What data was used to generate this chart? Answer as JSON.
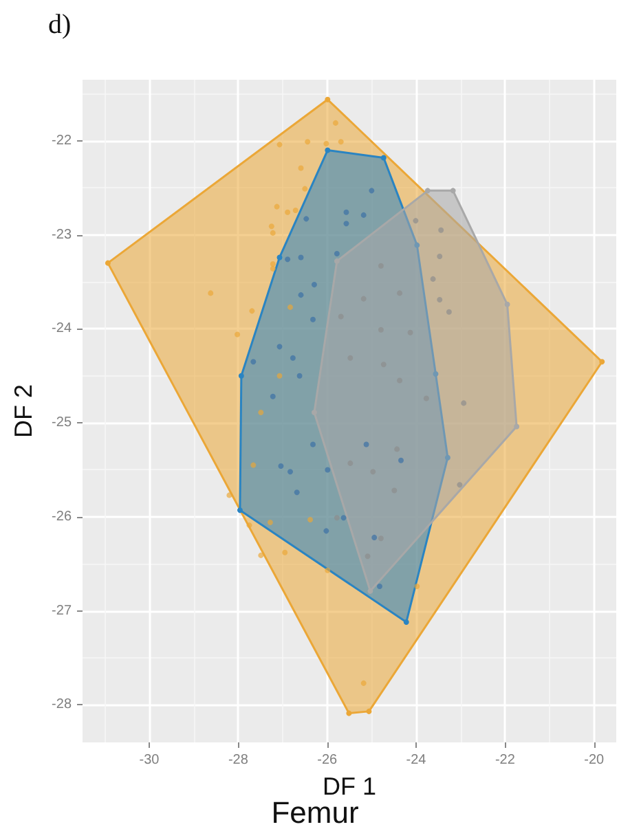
{
  "chart_data": {
    "type": "scatter",
    "title": "Femur",
    "xlabel": "DF 1",
    "ylabel": "DF 2",
    "annotations": [
      "d)"
    ],
    "xlim": [
      -31.5,
      -19.5
    ],
    "xticks": [
      -30,
      -28,
      -26,
      -24,
      -22,
      -20
    ],
    "ylim": [
      -28.4,
      -21.35
    ],
    "yticks": [
      -22,
      -23,
      -24,
      -25,
      -26,
      -27,
      -28
    ],
    "grid": true,
    "marker": "circle",
    "series": [
      {
        "type": "area",
        "color": "#eba737",
        "x": [
          -25.99,
          -30.93,
          -25.51,
          -25.06,
          -19.82
        ],
        "values": [
          -21.56,
          -23.3,
          -28.09,
          -28.07,
          -24.35
        ]
      },
      {
        "type": "area",
        "color": "#2a84c2",
        "x": [
          -25.99,
          -24.73,
          -23.98,
          -23.56,
          -23.29,
          -24.22,
          -27.96,
          -27.93,
          -27.07
        ],
        "values": [
          -22.1,
          -22.18,
          -23.11,
          -24.48,
          -25.37,
          -27.12,
          -25.93,
          -24.5,
          -23.24
        ]
      },
      {
        "type": "area",
        "color": "#a8a8a8",
        "x": [
          -23.74,
          -23.17,
          -21.95,
          -21.74,
          -25.03,
          -26.29,
          -25.78
        ],
        "values": [
          -22.53,
          -22.53,
          -23.74,
          -25.04,
          -26.79,
          -24.89,
          -23.28
        ]
      },
      {
        "color": "#eba737",
        "x": [
          -25.81,
          -27.07,
          -26.44,
          -26.02,
          -25.69,
          -26.59,
          -26.5,
          -27.13,
          -26.89,
          -26.71,
          -27.25,
          -27.22,
          -27.22,
          -27.22,
          -28.62,
          -27.69,
          -28.02,
          -28.2,
          -27.75,
          -27.49,
          -26.95,
          -25.99,
          -25.18,
          -23.98,
          -26.83,
          -27.07,
          -27.49,
          -27.66,
          -27.28,
          -26.38
        ],
        "values": [
          -21.81,
          -22.04,
          -22.01,
          -22.03,
          -22.01,
          -22.29,
          -22.51,
          -22.7,
          -22.76,
          -22.74,
          -22.91,
          -22.98,
          -23.31,
          -23.36,
          -23.62,
          -23.81,
          -24.06,
          -25.77,
          -26.09,
          -26.41,
          -26.38,
          -26.57,
          -27.77,
          -26.74,
          -23.77,
          -24.5,
          -24.89,
          -25.45,
          -26.06,
          -26.03
        ]
      },
      {
        "color": "#3a6ea5",
        "x": [
          -25.0,
          -25.57,
          -25.18,
          -25.57,
          -26.47,
          -26.89,
          -26.59,
          -25.78,
          -26.29,
          -26.59,
          -26.32,
          -27.07,
          -27.66,
          -26.77,
          -26.62,
          -27.22,
          -26.32,
          -27.04,
          -26.83,
          -26.68,
          -25.99,
          -26.02,
          -25.63,
          -24.82,
          -24.94,
          -24.34,
          -25.12
        ],
        "values": [
          -22.53,
          -22.76,
          -22.79,
          -22.88,
          -22.83,
          -23.26,
          -23.24,
          -23.2,
          -23.53,
          -23.64,
          -23.9,
          -24.19,
          -24.35,
          -24.31,
          -24.5,
          -24.72,
          -25.23,
          -25.46,
          -25.52,
          -25.74,
          -25.5,
          -26.15,
          -26.01,
          -26.74,
          -26.22,
          -25.4,
          -25.23
        ]
      },
      {
        "color": "#8c8c8c",
        "x": [
          -24.01,
          -23.44,
          -23.47,
          -23.62,
          -23.47,
          -23.26,
          -22.93,
          -24.79,
          -24.37,
          -25.18,
          -24.79,
          -24.13,
          -25.69,
          -25.48,
          -24.73,
          -24.37,
          -23.77,
          -24.43,
          -24.97,
          -24.49,
          -25.48,
          -25.78,
          -24.79,
          -25.09,
          -23.02
        ],
        "values": [
          -22.85,
          -22.95,
          -23.23,
          -23.47,
          -23.69,
          -23.82,
          -24.79,
          -23.33,
          -23.62,
          -23.68,
          -24.01,
          -24.04,
          -23.87,
          -24.31,
          -24.38,
          -24.55,
          -24.74,
          -25.28,
          -25.52,
          -25.72,
          -25.43,
          -26.01,
          -26.23,
          -26.42,
          -25.66
        ]
      }
    ]
  }
}
